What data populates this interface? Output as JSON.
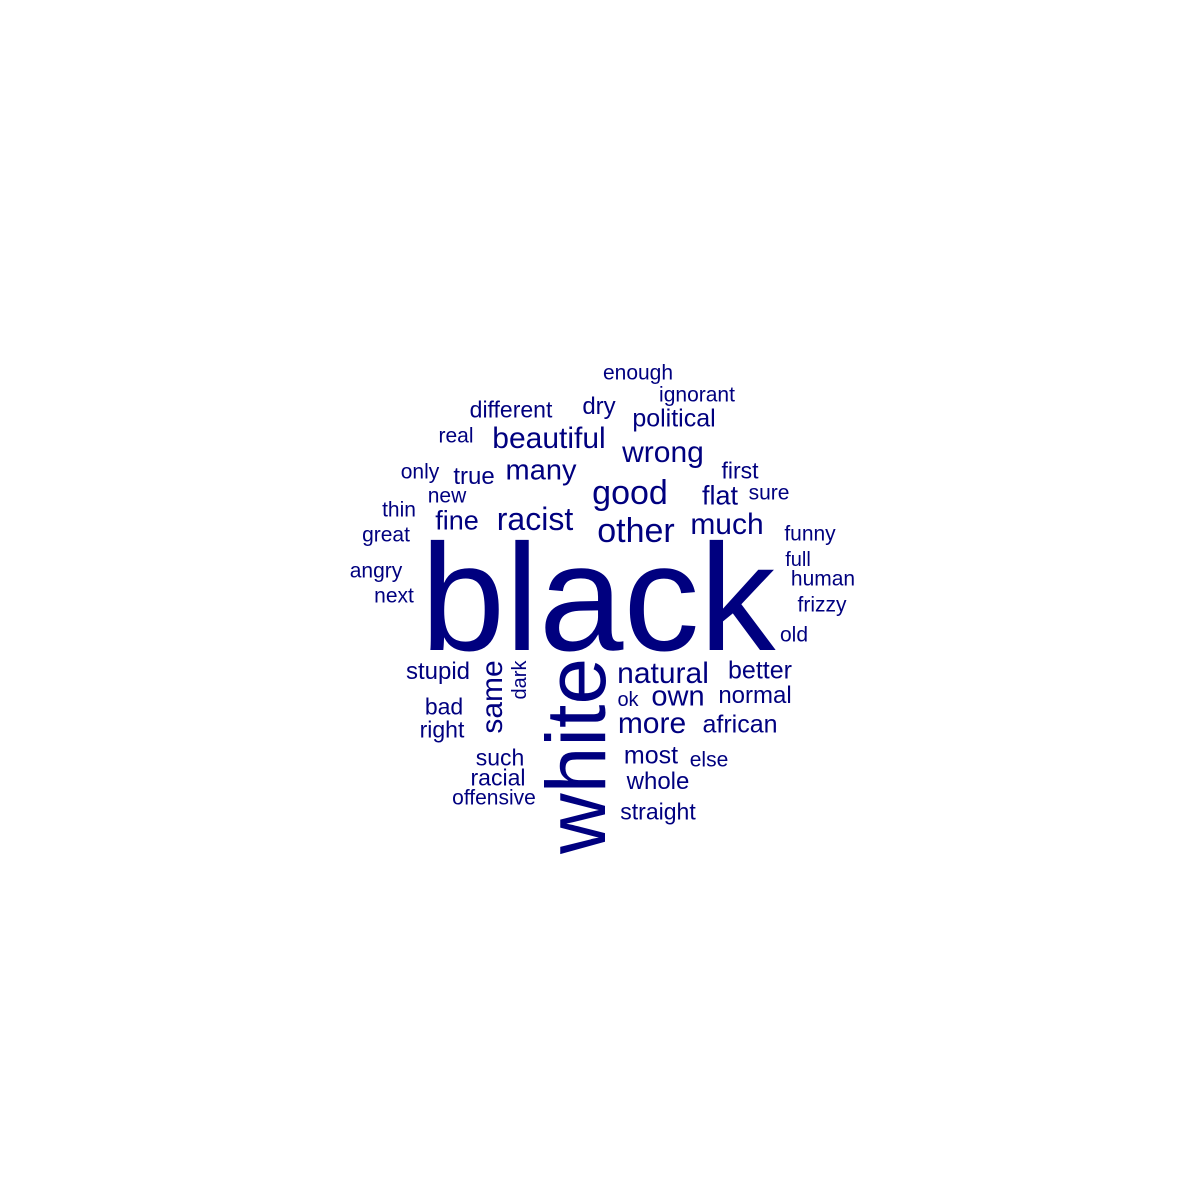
{
  "word_cloud": {
    "color": "#00007f",
    "words": [
      {
        "text": "black",
        "weight": 100,
        "orientation": "horizontal"
      },
      {
        "text": "white",
        "weight": 63,
        "orientation": "vertical"
      },
      {
        "text": "other",
        "weight": 22,
        "orientation": "horizontal"
      },
      {
        "text": "good",
        "weight": 22,
        "orientation": "horizontal"
      },
      {
        "text": "racist",
        "weight": 21,
        "orientation": "horizontal"
      },
      {
        "text": "natural",
        "weight": 20,
        "orientation": "horizontal"
      },
      {
        "text": "more",
        "weight": 20,
        "orientation": "horizontal"
      },
      {
        "text": "same",
        "weight": 20,
        "orientation": "vertical"
      },
      {
        "text": "beautiful",
        "weight": 20,
        "orientation": "horizontal"
      },
      {
        "text": "wrong",
        "weight": 20,
        "orientation": "horizontal"
      },
      {
        "text": "much",
        "weight": 20,
        "orientation": "horizontal"
      },
      {
        "text": "many",
        "weight": 19,
        "orientation": "horizontal"
      },
      {
        "text": "own",
        "weight": 19,
        "orientation": "horizontal"
      },
      {
        "text": "fine",
        "weight": 18,
        "orientation": "horizontal"
      },
      {
        "text": "flat",
        "weight": 18,
        "orientation": "horizontal"
      },
      {
        "text": "political",
        "weight": 17,
        "orientation": "horizontal"
      },
      {
        "text": "most",
        "weight": 17,
        "orientation": "horizontal"
      },
      {
        "text": "better",
        "weight": 17,
        "orientation": "horizontal"
      },
      {
        "text": "african",
        "weight": 17,
        "orientation": "horizontal"
      },
      {
        "text": "stupid",
        "weight": 16,
        "orientation": "horizontal"
      },
      {
        "text": "normal",
        "weight": 16,
        "orientation": "horizontal"
      },
      {
        "text": "dry",
        "weight": 16,
        "orientation": "horizontal"
      },
      {
        "text": "true",
        "weight": 16,
        "orientation": "horizontal"
      },
      {
        "text": "whole",
        "weight": 16,
        "orientation": "horizontal"
      },
      {
        "text": "different",
        "weight": 15,
        "orientation": "horizontal"
      },
      {
        "text": "bad",
        "weight": 15,
        "orientation": "horizontal"
      },
      {
        "text": "right",
        "weight": 15,
        "orientation": "horizontal"
      },
      {
        "text": "such",
        "weight": 15,
        "orientation": "horizontal"
      },
      {
        "text": "racial",
        "weight": 15,
        "orientation": "horizontal"
      },
      {
        "text": "straight",
        "weight": 15,
        "orientation": "horizontal"
      },
      {
        "text": "first",
        "weight": 15,
        "orientation": "horizontal"
      },
      {
        "text": "human",
        "weight": 14,
        "orientation": "horizontal"
      },
      {
        "text": "frizzy",
        "weight": 14,
        "orientation": "horizontal"
      },
      {
        "text": "else",
        "weight": 14,
        "orientation": "horizontal"
      },
      {
        "text": "real",
        "weight": 14,
        "orientation": "horizontal"
      },
      {
        "text": "sure",
        "weight": 14,
        "orientation": "horizontal"
      },
      {
        "text": "ignorant",
        "weight": 14,
        "orientation": "horizontal"
      },
      {
        "text": "enough",
        "weight": 14,
        "orientation": "horizontal"
      },
      {
        "text": "only",
        "weight": 14,
        "orientation": "horizontal"
      },
      {
        "text": "new",
        "weight": 14,
        "orientation": "horizontal"
      },
      {
        "text": "thin",
        "weight": 14,
        "orientation": "horizontal"
      },
      {
        "text": "great",
        "weight": 14,
        "orientation": "horizontal"
      },
      {
        "text": "angry",
        "weight": 14,
        "orientation": "horizontal"
      },
      {
        "text": "next",
        "weight": 14,
        "orientation": "horizontal"
      },
      {
        "text": "funny",
        "weight": 14,
        "orientation": "horizontal"
      },
      {
        "text": "old",
        "weight": 14,
        "orientation": "horizontal"
      },
      {
        "text": "offensive",
        "weight": 14,
        "orientation": "horizontal"
      },
      {
        "text": "full",
        "weight": 13,
        "orientation": "horizontal"
      },
      {
        "text": "ok",
        "weight": 13,
        "orientation": "horizontal"
      },
      {
        "text": "dark",
        "weight": 13,
        "orientation": "vertical"
      }
    ]
  }
}
